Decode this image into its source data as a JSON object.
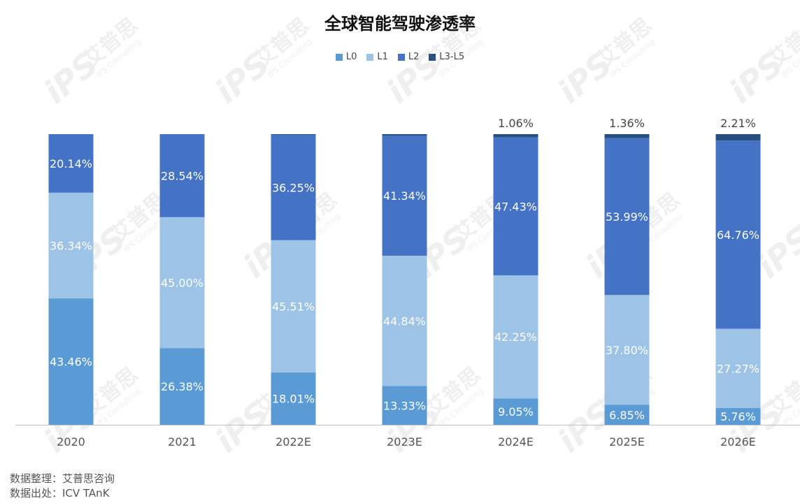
{
  "title": "全球智能驾驶渗透率",
  "watermark": {
    "brand": "艾普思",
    "sub": "IPS Consulting",
    "mark": "iPS"
  },
  "source": {
    "note": "数据整理：艾普思咨询",
    "origin": "数据出处：ICV TAnK"
  },
  "colors": {
    "L0": "#5b9bd5",
    "L1": "#9dc3e6",
    "L2": "#4472c4",
    "L3-L5": "#264f7f",
    "axis": "#bfbfbf"
  },
  "chart_data": {
    "type": "bar",
    "stacked": true,
    "percent_stacked": true,
    "title": "全球智能驾驶渗透率",
    "legend_position": "top",
    "categories": [
      "2020",
      "2021",
      "2022E",
      "2023E",
      "2024E",
      "2025E",
      "2026E"
    ],
    "series": [
      {
        "name": "L0",
        "values": [
          43.46,
          26.38,
          18.01,
          13.33,
          9.05,
          6.85,
          5.76
        ],
        "labels": [
          "43.46%",
          "26.38%",
          "18.01%",
          "13.33%",
          "9.05%",
          "6.85%",
          "5.76%"
        ]
      },
      {
        "name": "L1",
        "values": [
          36.34,
          45.0,
          45.51,
          44.84,
          42.25,
          37.8,
          27.27
        ],
        "labels": [
          "36.34%",
          "45.00%",
          "45.51%",
          "44.84%",
          "42.25%",
          "37.80%",
          "27.27%"
        ]
      },
      {
        "name": "L2",
        "values": [
          20.14,
          28.54,
          36.25,
          41.34,
          47.43,
          53.99,
          64.76
        ],
        "labels": [
          "20.14%",
          "28.54%",
          "36.25%",
          "41.34%",
          "47.43%",
          "53.99%",
          "64.76%"
        ]
      },
      {
        "name": "L3-L5",
        "values": [
          0,
          0,
          0.23,
          0.49,
          1.06,
          1.36,
          2.21
        ],
        "labels": [
          "",
          "",
          "",
          "",
          "1.06%",
          "1.36%",
          "2.21%"
        ]
      }
    ]
  }
}
